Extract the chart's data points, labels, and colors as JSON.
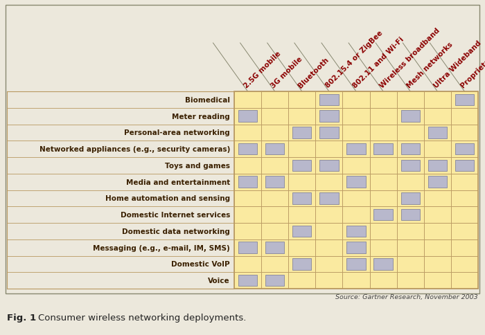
{
  "rows": [
    "Voice",
    "Domestic VoIP",
    "Messaging (e.g., e-mail, IM, SMS)",
    "Domestic data networking",
    "Domestic Internet services",
    "Home automation and sensing",
    "Media and entertainment",
    "Toys and games",
    "Networked appliances (e.g., security cameras)",
    "Personal-area networking",
    "Meter reading",
    "Biomedical"
  ],
  "cols": [
    "2.5G mobile",
    "3G mobile",
    "Bluetooth",
    "802.15.4 or ZigBee",
    "802.11 and Wi-Fi",
    "Wireless broadband",
    "Mesh networks",
    "Ultra Wideband",
    "Proprietary"
  ],
  "checked": [
    [
      1,
      1,
      0,
      0,
      0,
      0,
      0,
      0,
      0
    ],
    [
      0,
      0,
      1,
      0,
      1,
      1,
      0,
      0,
      0
    ],
    [
      1,
      1,
      0,
      0,
      1,
      0,
      0,
      0,
      0
    ],
    [
      0,
      0,
      1,
      0,
      1,
      0,
      0,
      0,
      0
    ],
    [
      0,
      0,
      0,
      0,
      0,
      1,
      1,
      0,
      0
    ],
    [
      0,
      0,
      1,
      1,
      0,
      0,
      1,
      0,
      0
    ],
    [
      1,
      1,
      0,
      0,
      1,
      0,
      0,
      1,
      0
    ],
    [
      0,
      0,
      1,
      1,
      0,
      0,
      1,
      1,
      1
    ],
    [
      1,
      1,
      0,
      0,
      1,
      1,
      1,
      0,
      1
    ],
    [
      0,
      0,
      1,
      1,
      0,
      0,
      0,
      1,
      0
    ],
    [
      1,
      0,
      0,
      1,
      0,
      0,
      1,
      0,
      0
    ],
    [
      0,
      0,
      0,
      1,
      0,
      0,
      0,
      0,
      1
    ]
  ],
  "bg_color": "#ece8dc",
  "cell_color": "#faeaa0",
  "check_color": "#b8b8cc",
  "grid_color": "#b89860",
  "row_label_color": "#3a2000",
  "col_label_color": "#8b0000",
  "source_text": "Source: Gartner Research, November 2003",
  "fig_width": 7.0,
  "fig_height": 4.85
}
